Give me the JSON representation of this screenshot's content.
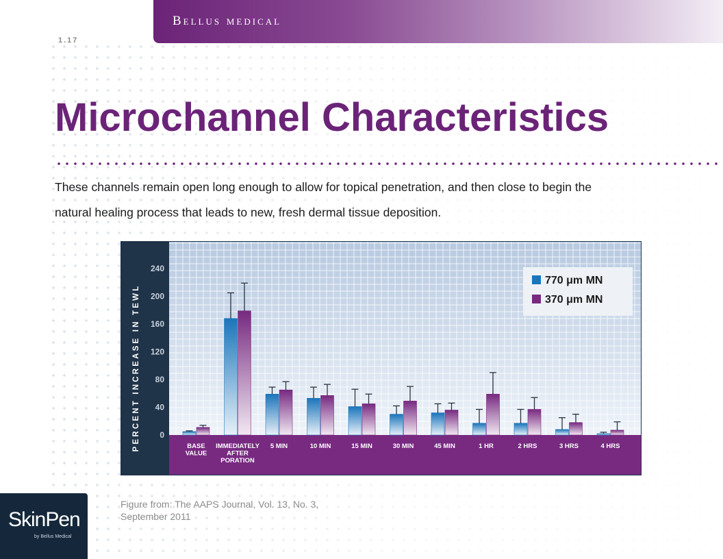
{
  "header": {
    "brand": "Bellus medical",
    "page_number": "1.17"
  },
  "slide": {
    "title": "Microchannel Characteristics",
    "body": "These channels remain open long enough to allow for topical penetration, and then close to begin the natural healing process that leads to new, fresh dermal tissue deposition.",
    "caption": "Figure from: The AAPS Journal, Vol. 13, No. 3, September 2011"
  },
  "footer_logo": {
    "name": "SkinPen",
    "subtitle": "by Bellus Medical"
  },
  "colors": {
    "brand_purple": "#6b2378",
    "series_blue": "#1b75bb",
    "series_purple": "#772a80",
    "axis_panel": "#1f3349"
  },
  "chart_data": {
    "type": "bar",
    "ylabel": "PERCENT INCREASE IN TEWL",
    "ylim": [
      0,
      240
    ],
    "yticks": [
      0,
      40,
      80,
      120,
      160,
      200,
      240
    ],
    "grid": true,
    "legend_position": "top-right",
    "categories": [
      "BASE VALUE",
      "IMMEDIATELY AFTER PORATION",
      "5 MIN",
      "10 MIN",
      "15 MIN",
      "30 MIN",
      "45 MIN",
      "1 HR",
      "2 HRS",
      "3 HRS",
      "4 HRS"
    ],
    "series": [
      {
        "name": "770 μm MN",
        "values": [
          5,
          168,
          59,
          53,
          41,
          30,
          32,
          17,
          17,
          8,
          2
        ],
        "errors": [
          1,
          37,
          10,
          16,
          25,
          12,
          13,
          20,
          20,
          17,
          2
        ]
      },
      {
        "name": "370 μm MN",
        "values": [
          11,
          179,
          65,
          57,
          45,
          49,
          36,
          59,
          37,
          18,
          7
        ],
        "errors": [
          3,
          40,
          12,
          16,
          14,
          21,
          10,
          31,
          17,
          12,
          12
        ]
      }
    ]
  }
}
